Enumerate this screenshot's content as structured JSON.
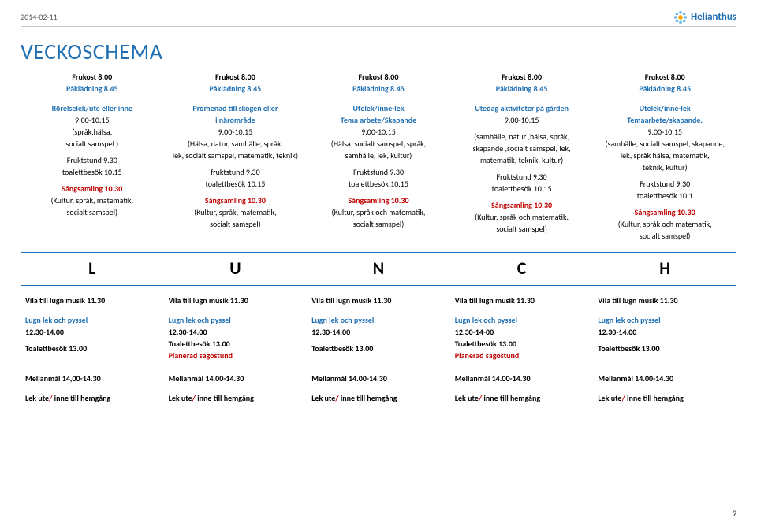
{
  "meta": {
    "date": "2014-02-11",
    "page_number": "9",
    "brand_name": "Helianthus",
    "brand_inner_color": "#f7a600",
    "brand_petal_color": "#6db7e8",
    "text_blue": "#1f6fb2",
    "text_red": "#c00000"
  },
  "title": "VECKOSCHEMA",
  "frukost": {
    "line1": "Frukost 8.00",
    "line2": "Påklädning 8.45"
  },
  "lunch_letters": [
    "L",
    "U",
    "N",
    "C",
    "H"
  ],
  "days": [
    {
      "morning": [
        {
          "text": "Rörelselek/ute eller inne",
          "cls": "blue bold"
        },
        {
          "text": "9.00-10.15",
          "cls": ""
        },
        {
          "text": "(språk,hälsa,",
          "cls": ""
        },
        {
          "text": "socialt samspel )",
          "cls": ""
        },
        {
          "text": "",
          "cls": ""
        },
        {
          "text": "Fruktstund 9.30",
          "cls": ""
        },
        {
          "text": "toalettbesök 10.15",
          "cls": ""
        },
        {
          "text": "",
          "cls": ""
        },
        {
          "text": "Sångsamling 10.30",
          "cls": "red bold"
        },
        {
          "text": "(Kultur, språk, matematik,",
          "cls": ""
        },
        {
          "text": "socialt samspel)",
          "cls": ""
        }
      ],
      "vila": "Vila till lugn musik 11.30",
      "lek": [
        {
          "text": "Lugn lek och pyssel",
          "cls": "blue bold"
        },
        {
          "text": "12.30-14.00",
          "cls": "bold"
        },
        {
          "text": "",
          "cls": ""
        },
        {
          "text": "Toalettbesök 13.00",
          "cls": "bold"
        }
      ],
      "mellan": "Mellanmål 14,00-14.30",
      "hem": [
        {
          "text": "Lek ute",
          "cls": "bold"
        },
        {
          "text": "/",
          "cls": "red bold"
        },
        {
          "text": " inne till hemgång",
          "cls": "bold"
        }
      ]
    },
    {
      "morning": [
        {
          "text": "Promenad till skogen eller",
          "cls": "blue bold"
        },
        {
          "text": "i närområde",
          "cls": "blue bold"
        },
        {
          "text": "9.00-10.15",
          "cls": ""
        },
        {
          "text": "(Hälsa, natur, samhälle, språk,",
          "cls": ""
        },
        {
          "text": "lek, socialt samspel, matematik, teknik)",
          "cls": ""
        },
        {
          "text": "",
          "cls": ""
        },
        {
          "text": "fruktstund 9.30",
          "cls": ""
        },
        {
          "text": "toalettbesök 10.15",
          "cls": ""
        },
        {
          "text": "",
          "cls": ""
        },
        {
          "text": "Sångsamling 10.30",
          "cls": "red bold"
        },
        {
          "text": "(Kultur, språk, matematik,",
          "cls": ""
        },
        {
          "text": "socialt samspel)",
          "cls": ""
        }
      ],
      "vila": "Vila till lugn musik 11.30",
      "lek": [
        {
          "text": "Lugn lek och pyssel",
          "cls": "blue bold"
        },
        {
          "text": "12.30-14.00",
          "cls": "bold"
        },
        {
          "text": "Toalettbesök 13.00",
          "cls": "bold"
        },
        {
          "text": "Planerad sagostund",
          "cls": "red bold"
        }
      ],
      "mellan": "Mellanmål 14.00-14.30",
      "hem": [
        {
          "text": "Lek ute",
          "cls": "bold"
        },
        {
          "text": "/",
          "cls": "red bold"
        },
        {
          "text": " inne till hemgång",
          "cls": "bold"
        }
      ]
    },
    {
      "morning": [
        {
          "text": "Utelek/inne-lek",
          "cls": "blue bold"
        },
        {
          "text": "Tema arbete/Skapande",
          "cls": "blue bold"
        },
        {
          "text": "9.00-10.15",
          "cls": ""
        },
        {
          "text": "(Hälsa, socialt samspel, språk,",
          "cls": ""
        },
        {
          "text": "samhälle, lek, kultur)",
          "cls": ""
        },
        {
          "text": "",
          "cls": ""
        },
        {
          "text": "Fruktstund 9.30",
          "cls": ""
        },
        {
          "text": "toalettbesök 10.15",
          "cls": ""
        },
        {
          "text": "",
          "cls": ""
        },
        {
          "text": "Sångsamling 10.30",
          "cls": "red bold"
        },
        {
          "text": "(Kultur, språk och matematik,",
          "cls": ""
        },
        {
          "text": "socialt samspel)",
          "cls": ""
        }
      ],
      "vila": "Vila till lugn musik 11.30",
      "lek": [
        {
          "text": "Lugn lek och pyssel",
          "cls": "blue bold"
        },
        {
          "text": "12.30-14.00",
          "cls": "bold"
        },
        {
          "text": "",
          "cls": ""
        },
        {
          "text": "Toalettbesök 13.00",
          "cls": "bold"
        }
      ],
      "mellan": "Mellanmål 14.00-14.30",
      "hem": [
        {
          "text": "Lek ute",
          "cls": "bold"
        },
        {
          "text": "/",
          "cls": "red bold"
        },
        {
          "text": " inne till hemgång",
          "cls": "bold"
        }
      ]
    },
    {
      "morning": [
        {
          "text": "Utedag aktiviteter på gården",
          "cls": "blue bold"
        },
        {
          "text": "9.00-10.15",
          "cls": ""
        },
        {
          "text": "",
          "cls": ""
        },
        {
          "text": "(samhälle, natur ,hälsa, språk,",
          "cls": ""
        },
        {
          "text": "skapande ,socialt samspel, lek,",
          "cls": ""
        },
        {
          "text": "matematik, teknik, kultur)",
          "cls": ""
        },
        {
          "text": "",
          "cls": ""
        },
        {
          "text": "Fruktstund 9.30",
          "cls": ""
        },
        {
          "text": "toalettbesök 10.15",
          "cls": ""
        },
        {
          "text": "",
          "cls": ""
        },
        {
          "text": "Sångsamling 10.30",
          "cls": "red bold"
        },
        {
          "text": "(Kultur, språk och matematik,",
          "cls": ""
        },
        {
          "text": "socialt samspel)",
          "cls": ""
        }
      ],
      "vila": "Vila till lugn musik 11.30",
      "lek": [
        {
          "text": "Lugn lek och pyssel",
          "cls": "blue bold"
        },
        {
          "text": "12.30-14-00",
          "cls": "bold"
        },
        {
          "text": "Toalettbesök 13.00",
          "cls": "bold"
        },
        {
          "text": "Planerad sagostund",
          "cls": "red bold"
        }
      ],
      "mellan": "Mellanmål 14.00-14.30",
      "hem": [
        {
          "text": "Lek ute",
          "cls": "bold"
        },
        {
          "text": "/",
          "cls": "red bold"
        },
        {
          "text": " inne till hemgång",
          "cls": "bold"
        }
      ]
    },
    {
      "morning": [
        {
          "text": "Utelek/inne-lek",
          "cls": "blue bold"
        },
        {
          "text": "Temaarbete/skapande.",
          "cls": "blue bold"
        },
        {
          "text": "9.00-10.15",
          "cls": ""
        },
        {
          "text": "(samhälle, socialt samspel, skapande,",
          "cls": ""
        },
        {
          "text": "lek, språk hälsa, matematik,",
          "cls": ""
        },
        {
          "text": "teknik, kultur)",
          "cls": ""
        },
        {
          "text": "",
          "cls": ""
        },
        {
          "text": "Fruktstund 9.30",
          "cls": ""
        },
        {
          "text": "toalettbesök 10.1",
          "cls": ""
        },
        {
          "text": "",
          "cls": ""
        },
        {
          "text": "Sångsamling 10.30",
          "cls": "red bold"
        },
        {
          "text": "(Kultur, språk och matematik,",
          "cls": ""
        },
        {
          "text": "socialt samspel)",
          "cls": ""
        }
      ],
      "vila": "Vila till lugn musik 11.30",
      "lek": [
        {
          "text": "Lugn lek och pyssel",
          "cls": "blue bold"
        },
        {
          "text": "12.30-14.00",
          "cls": "bold"
        },
        {
          "text": "",
          "cls": ""
        },
        {
          "text": "Toalettbesök 13.00",
          "cls": "bold"
        }
      ],
      "mellan": "Mellanmål 14.00-14.30",
      "hem": [
        {
          "text": "Lek ute",
          "cls": "bold"
        },
        {
          "text": "/",
          "cls": "red bold"
        },
        {
          "text": " inne till hemgång",
          "cls": "bold"
        }
      ]
    }
  ]
}
